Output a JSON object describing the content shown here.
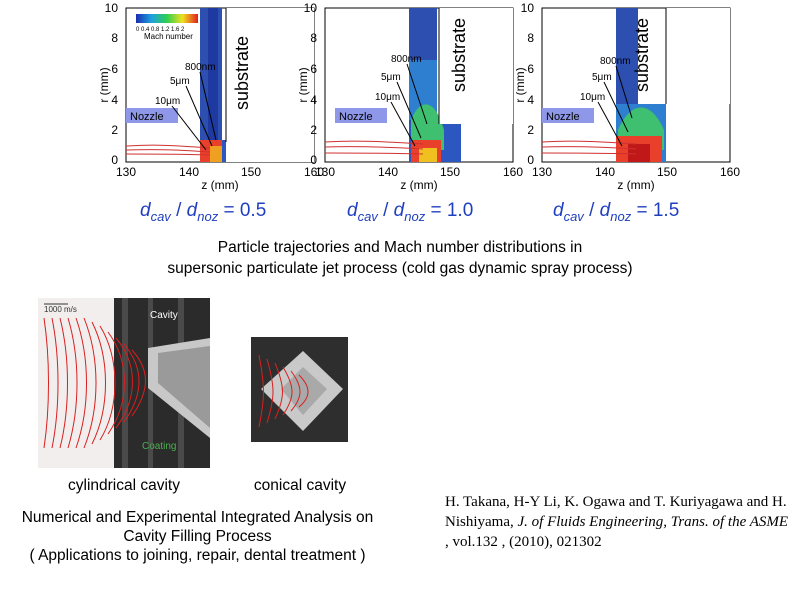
{
  "plots": [
    {
      "ratio_value": "0.5",
      "annot": [
        "800nm",
        "5μm",
        "10μm"
      ],
      "nozzle": "Nozzle",
      "substrate": "substrate"
    },
    {
      "ratio_value": "1.0",
      "annot": [
        "800nm",
        "5μm",
        "10μm"
      ],
      "nozzle": "Nozzle",
      "substrate": "substrate"
    },
    {
      "ratio_value": "1.5",
      "annot": [
        "800nm",
        "5μm",
        "10μm"
      ],
      "nozzle": "Nozzle",
      "substrate": "substrate"
    }
  ],
  "axes": {
    "xlabel": "z (mm)",
    "ylabel": "r (mm)",
    "x_ticks": [
      "130",
      "140",
      "150",
      "160"
    ],
    "y_ticks": [
      "0",
      "2",
      "4",
      "6",
      "8",
      "10"
    ]
  },
  "colorbar": {
    "ticks": "0  0.4 0.8 1.2  1.6  2",
    "label": "Mach number"
  },
  "ratio_text": {
    "d": "d",
    "cav": "cav",
    "slash": " / ",
    "noz": "noz",
    "equals": " = "
  },
  "caption1": {
    "line1": "Particle trajectories and Mach number distributions in",
    "line2": "supersonic particulate jet process (cold gas dynamic spray process)"
  },
  "photo_left": {
    "scale": "1000 m/s",
    "cavity": "Cavity",
    "coating": "Coating",
    "label": "cylindrical cavity"
  },
  "photo_right": {
    "label": "conical cavity"
  },
  "caption2": {
    "line1": "Numerical and Experimental Integrated Analysis on",
    "line2": "Cavity Filling Process",
    "line3": "( Applications to joining, repair, dental treatment )"
  },
  "reference": {
    "authors": "H. Takana, H-Y Li, K. Ogawa and T. Kuriyagawa and H. Nishiyama,",
    "journal": "J. of Fluids Engineering, Trans. of the ASME",
    "rest": " , vol.132 , (2010), 021302"
  }
}
